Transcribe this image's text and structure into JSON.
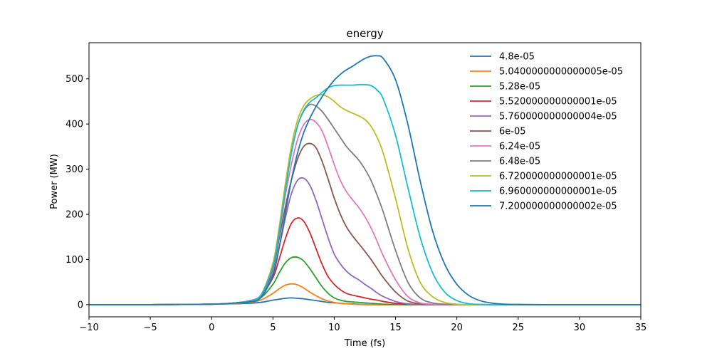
{
  "chart_data": {
    "type": "line",
    "title": "energy",
    "xlabel": "Time (fs)",
    "ylabel": "Power (MW)",
    "xlim": [
      -10,
      35
    ],
    "ylim": [
      -27,
      580
    ],
    "x_ticks": [
      -10,
      -5,
      0,
      5,
      10,
      15,
      20,
      25,
      30,
      35
    ],
    "y_ticks": [
      0,
      100,
      200,
      300,
      400,
      500
    ],
    "grid": false,
    "legend_position": "top-right",
    "x": [
      -10,
      -5,
      -2,
      0,
      1,
      2,
      3,
      4,
      5,
      5.5,
      6,
      6.5,
      7,
      7.5,
      8,
      8.5,
      9,
      9.5,
      10,
      10.5,
      11,
      11.5,
      12,
      12.5,
      13,
      13.5,
      14,
      15,
      16,
      17,
      18,
      19,
      20,
      21,
      22,
      23,
      24,
      25,
      27,
      30,
      35
    ],
    "series": [
      {
        "name": "4.8e-05",
        "color": "#1f77b4",
        "values": [
          0,
          0,
          0.5,
          1,
          1.5,
          2,
          3,
          5,
          10,
          12,
          14,
          15,
          14,
          13,
          11,
          9,
          7,
          5,
          4,
          3,
          2,
          1.5,
          1,
          0.5,
          0,
          0,
          0,
          0,
          0,
          0,
          0,
          0,
          0,
          0,
          0,
          0,
          0,
          0,
          0,
          0,
          0
        ]
      },
      {
        "name": "5.0400000000000005e-05",
        "color": "#ff7f0e",
        "values": [
          0,
          0,
          0.5,
          1,
          2,
          3,
          5,
          10,
          25,
          35,
          43,
          46,
          44,
          37,
          28,
          20,
          13,
          8,
          5,
          3,
          2,
          1,
          0.5,
          0,
          0,
          0,
          0,
          0,
          0,
          0,
          0,
          0,
          0,
          0,
          0,
          0,
          0,
          0,
          0,
          0,
          0
        ]
      },
      {
        "name": "5.28e-05",
        "color": "#2ca02c",
        "values": [
          0,
          0,
          0.5,
          1,
          2,
          4,
          7,
          15,
          45,
          70,
          92,
          104,
          105,
          97,
          80,
          60,
          40,
          25,
          15,
          10,
          7,
          6,
          5,
          4,
          3,
          2,
          1,
          0.5,
          0,
          0,
          0,
          0,
          0,
          0,
          0,
          0,
          0,
          0,
          0,
          0,
          0
        ]
      },
      {
        "name": "5.520000000000001e-05",
        "color": "#d62728",
        "values": [
          0,
          0,
          0.5,
          1,
          2,
          4,
          8,
          18,
          60,
          100,
          145,
          180,
          192,
          185,
          160,
          125,
          90,
          62,
          45,
          33,
          25,
          21,
          18,
          15,
          12,
          10,
          7,
          3,
          1,
          0.5,
          0,
          0,
          0,
          0,
          0,
          0,
          0,
          0,
          0,
          0,
          0
        ]
      },
      {
        "name": "5.760000000000004e-05",
        "color": "#9467bd",
        "values": [
          0,
          0,
          0.5,
          1,
          2,
          4,
          8,
          20,
          70,
          125,
          190,
          245,
          275,
          280,
          265,
          232,
          190,
          148,
          112,
          90,
          74,
          63,
          55,
          45,
          36,
          26,
          18,
          7,
          2,
          0.5,
          0,
          0,
          0,
          0,
          0,
          0,
          0,
          0,
          0,
          0,
          0
        ]
      },
      {
        "name": "6e-05",
        "color": "#8c564b",
        "values": [
          0,
          0,
          0.5,
          1,
          2,
          4,
          8,
          20,
          80,
          145,
          215,
          275,
          322,
          350,
          357,
          348,
          318,
          278,
          236,
          200,
          172,
          152,
          135,
          118,
          100,
          80,
          60,
          28,
          8,
          2,
          0.5,
          0,
          0,
          0,
          0,
          0,
          0,
          0,
          0,
          0,
          0
        ]
      },
      {
        "name": "6.24e-05",
        "color": "#e377c2",
        "values": [
          0,
          0,
          0.5,
          1,
          2,
          4,
          8,
          20,
          85,
          155,
          240,
          310,
          365,
          398,
          410,
          404,
          385,
          350,
          310,
          275,
          250,
          232,
          215,
          195,
          170,
          140,
          108,
          55,
          18,
          4,
          1,
          0,
          0,
          0,
          0,
          0,
          0,
          0,
          0,
          0,
          0
        ]
      },
      {
        "name": "6.48e-05",
        "color": "#7f7f7f",
        "values": [
          0,
          0,
          0.5,
          1,
          2,
          4,
          8,
          20,
          90,
          165,
          255,
          335,
          395,
          428,
          443,
          440,
          428,
          410,
          390,
          370,
          350,
          335,
          320,
          300,
          275,
          242,
          205,
          120,
          50,
          15,
          4,
          1,
          0,
          0,
          0,
          0,
          0,
          0,
          0,
          0,
          0
        ]
      },
      {
        "name": "6.720000000000001e-05",
        "color": "#bcbd22",
        "values": [
          0,
          0,
          0.5,
          1,
          2,
          4,
          8,
          20,
          92,
          170,
          265,
          350,
          408,
          440,
          455,
          463,
          465,
          460,
          450,
          438,
          430,
          424,
          418,
          410,
          395,
          370,
          335,
          235,
          125,
          50,
          18,
          5,
          1,
          0,
          0,
          0,
          0,
          0,
          0,
          0,
          0
        ]
      },
      {
        "name": "6.960000000000001e-05",
        "color": "#17becf",
        "values": [
          0,
          0,
          0.5,
          1,
          2,
          4,
          8,
          20,
          85,
          160,
          250,
          335,
          395,
          430,
          448,
          458,
          470,
          480,
          485,
          486,
          486,
          486,
          487,
          487,
          485,
          475,
          455,
          375,
          260,
          150,
          72,
          28,
          9,
          2,
          0.5,
          0,
          0,
          0,
          0,
          0,
          0
        ]
      },
      {
        "name": "7.200000000000002e-05",
        "color": "#1f77b4",
        "values": [
          0,
          0,
          0.5,
          1,
          2,
          4,
          6,
          15,
          65,
          125,
          200,
          275,
          335,
          380,
          412,
          438,
          460,
          480,
          497,
          510,
          520,
          528,
          537,
          545,
          550,
          551,
          545,
          498,
          400,
          275,
          165,
          90,
          45,
          20,
          8,
          3,
          1,
          0.5,
          0,
          0,
          0
        ]
      }
    ]
  }
}
